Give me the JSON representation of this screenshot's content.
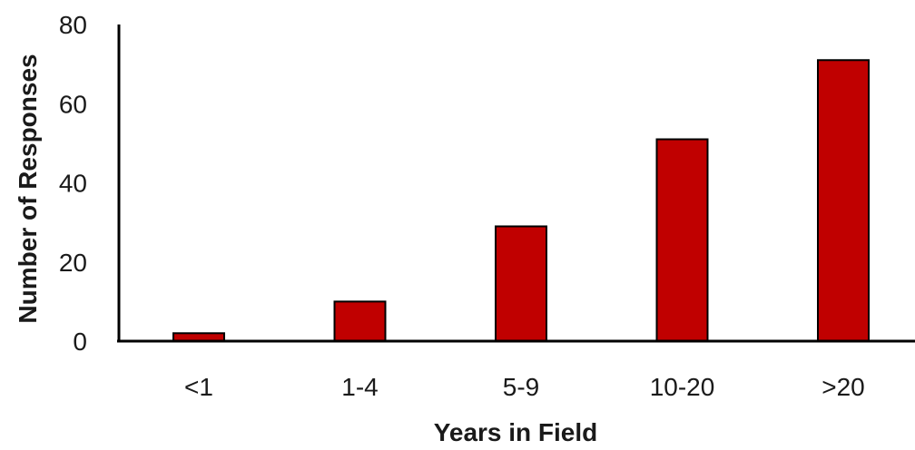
{
  "chart_data": {
    "type": "bar",
    "title": "",
    "xlabel": "Years in Field",
    "ylabel": "Number of Responses",
    "categories": [
      "<1",
      "1-4",
      "5-9",
      "10-20",
      ">20"
    ],
    "values": [
      2,
      10,
      29,
      51,
      71
    ],
    "ylim": [
      0,
      80
    ],
    "yticks": [
      "0",
      "20",
      "40",
      "60",
      "80"
    ],
    "grid": false,
    "legend": "none",
    "bar_color": "#C00000",
    "bar_edge_color": "#000000"
  }
}
